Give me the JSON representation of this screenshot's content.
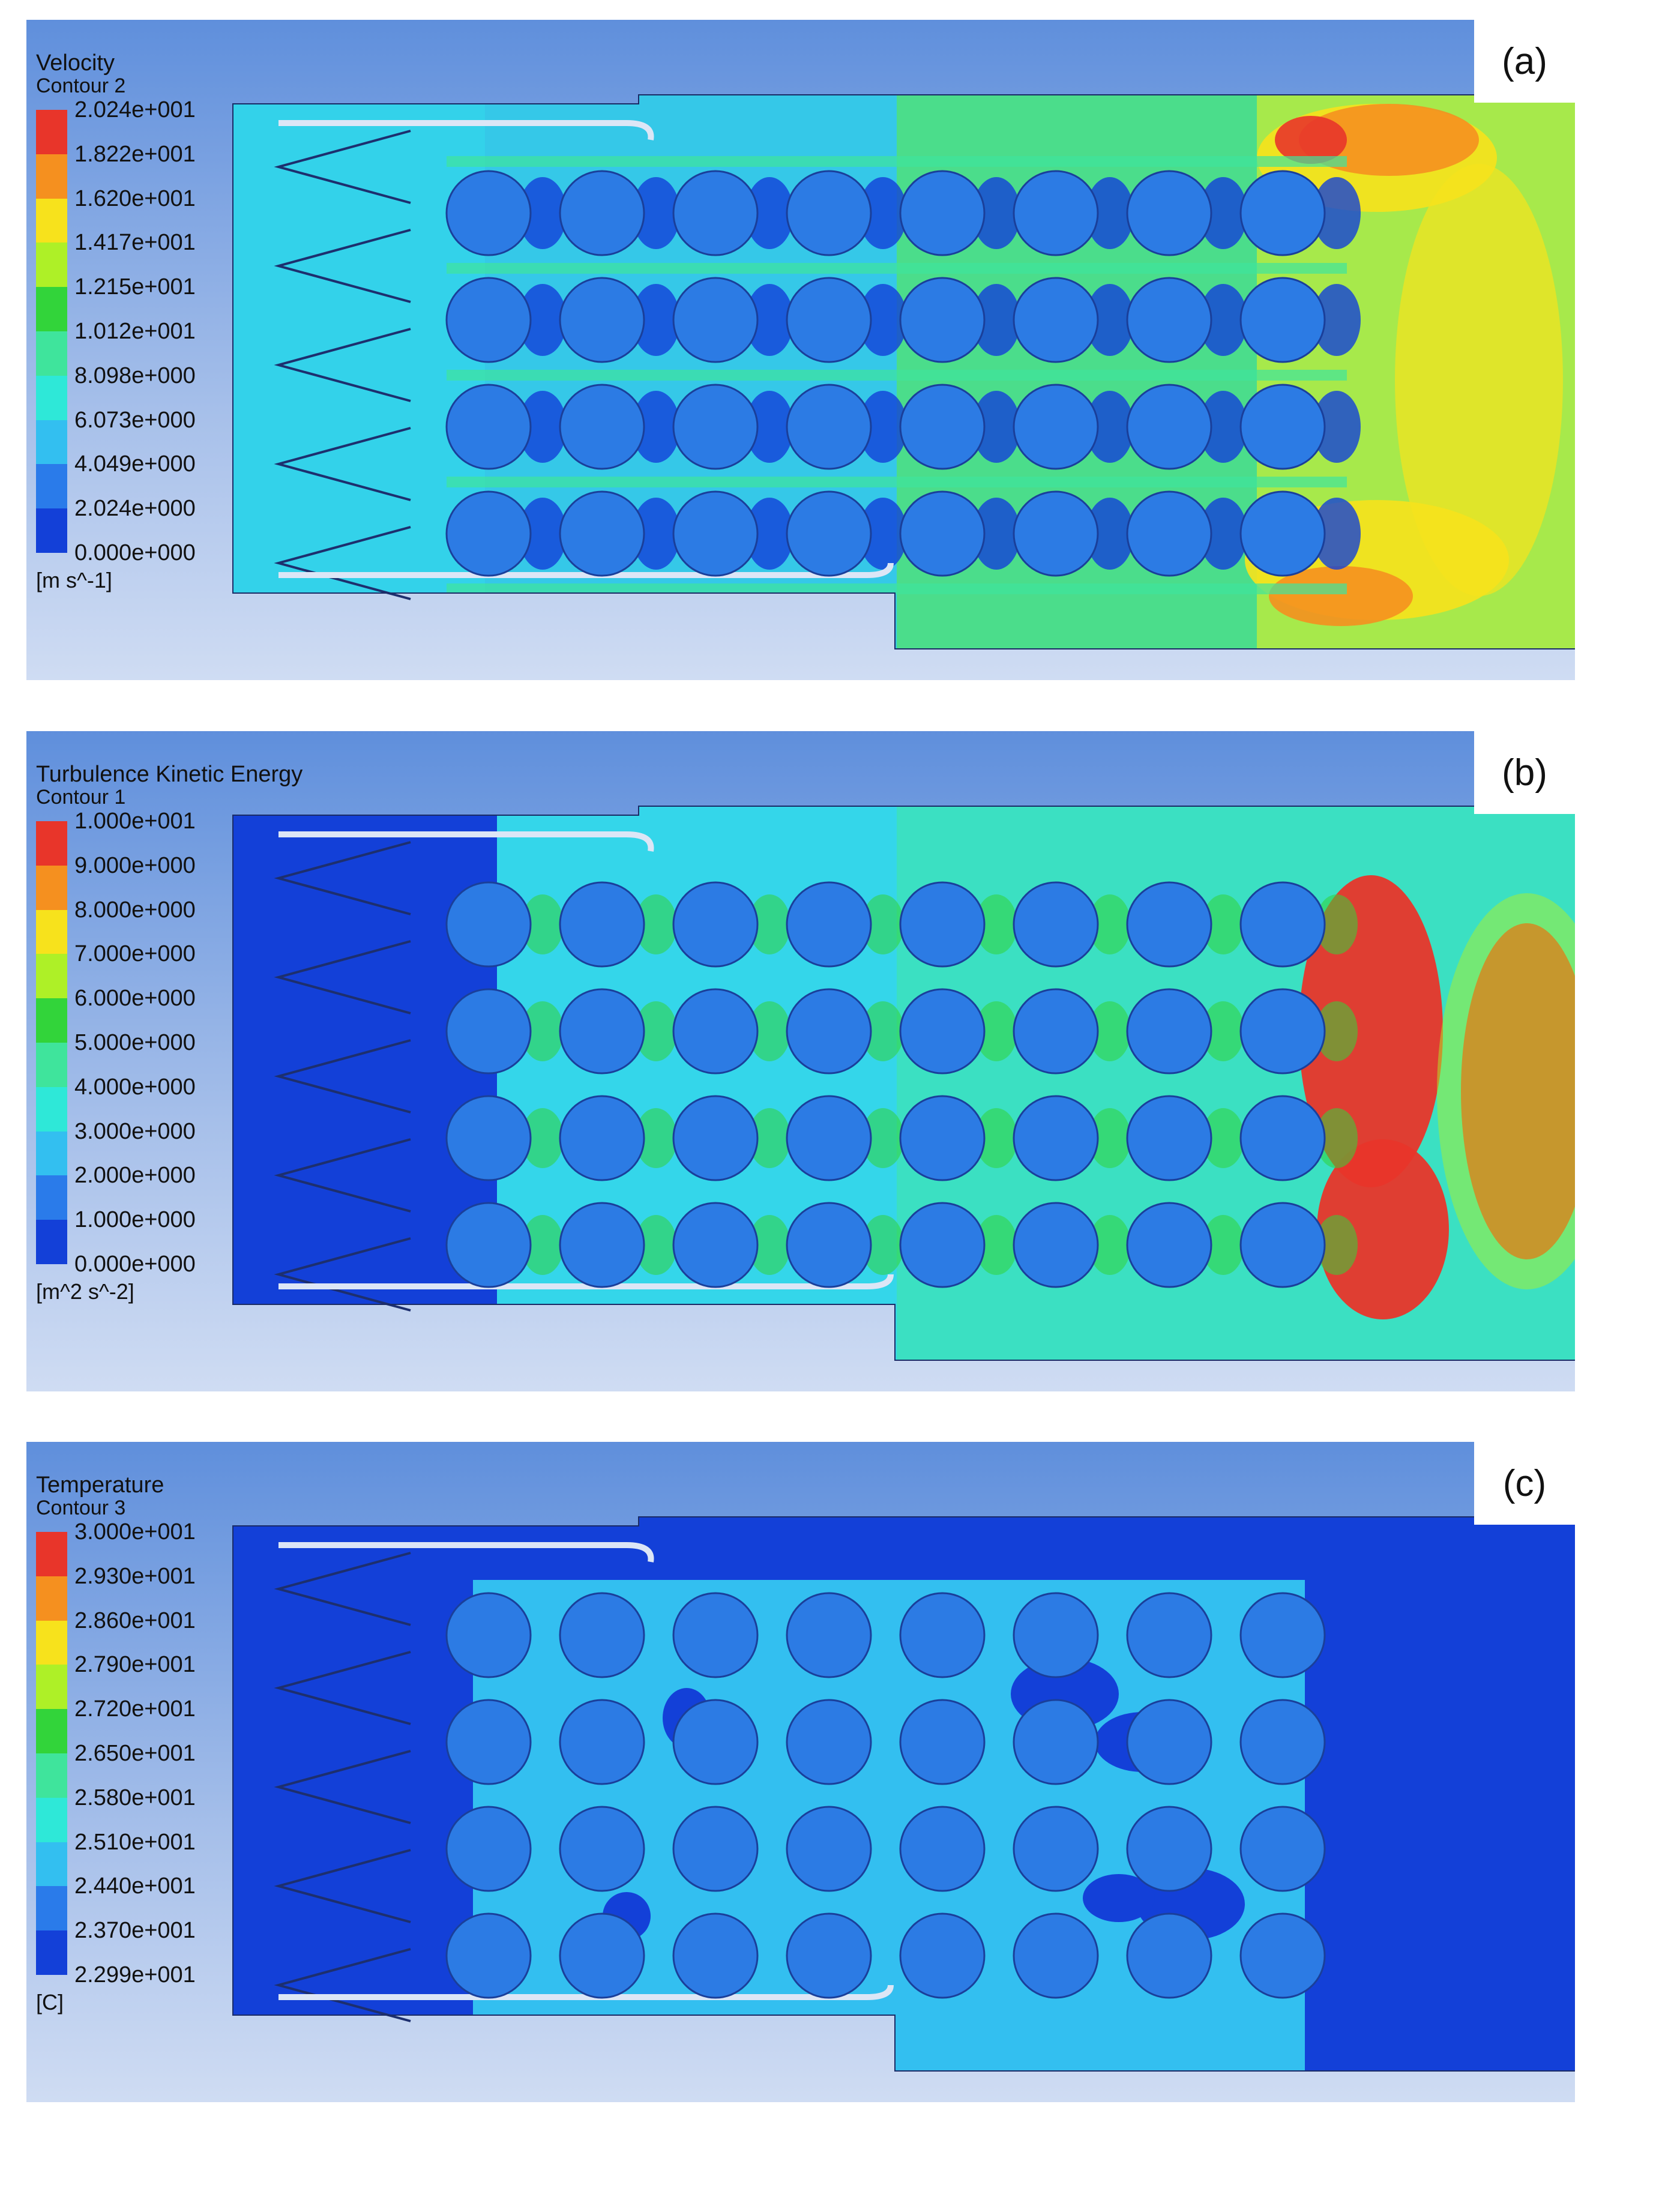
{
  "panels": [
    {
      "id": "a",
      "tag": "(a)",
      "title": "Velocity",
      "subtitle": "Contour 2",
      "unit": "[m s^-1]",
      "ticks": [
        "2.024e+001",
        "1.822e+001",
        "1.620e+001",
        "1.417e+001",
        "1.215e+001",
        "1.012e+001",
        "8.098e+000",
        "6.073e+000",
        "4.049e+000",
        "2.024e+000",
        "0.000e+000"
      ],
      "colormap": [
        "#e8352a",
        "#f5901f",
        "#f7e21c",
        "#aef027",
        "#32d43a",
        "#3fe49c",
        "#2ee8d8",
        "#33bff0",
        "#2a7bea",
        "#1340d8"
      ],
      "background_level": "#35c8e8"
    },
    {
      "id": "b",
      "tag": "(b)",
      "title": "Turbulence Kinetic Energy",
      "subtitle": "Contour 1",
      "unit": "[m^2 s^-2]",
      "ticks": [
        "1.000e+001",
        "9.000e+000",
        "8.000e+000",
        "7.000e+000",
        "6.000e+000",
        "5.000e+000",
        "4.000e+000",
        "3.000e+000",
        "2.000e+000",
        "1.000e+000",
        "0.000e+000"
      ],
      "colormap": [
        "#e8352a",
        "#f5901f",
        "#f7e21c",
        "#aef027",
        "#32d43a",
        "#3fe49c",
        "#2ee8d8",
        "#33bff0",
        "#2a7bea",
        "#1340d8"
      ],
      "background_level": "#34d6ea"
    },
    {
      "id": "c",
      "tag": "(c)",
      "title": "Temperature",
      "subtitle": "Contour 3",
      "unit": "[C]",
      "ticks": [
        "3.000e+001",
        "2.930e+001",
        "2.860e+001",
        "2.790e+001",
        "2.720e+001",
        "2.650e+001",
        "2.580e+001",
        "2.510e+001",
        "2.440e+001",
        "2.370e+001",
        "2.299e+001"
      ],
      "colormap": [
        "#e8352a",
        "#f5901f",
        "#f7e21c",
        "#aef027",
        "#32d43a",
        "#3fe49c",
        "#2ee8d8",
        "#33bff0",
        "#2a7bea",
        "#1340d8"
      ],
      "background_level": "#1340d8"
    }
  ],
  "tube_grid": {
    "rows": 4,
    "columns": 8
  }
}
